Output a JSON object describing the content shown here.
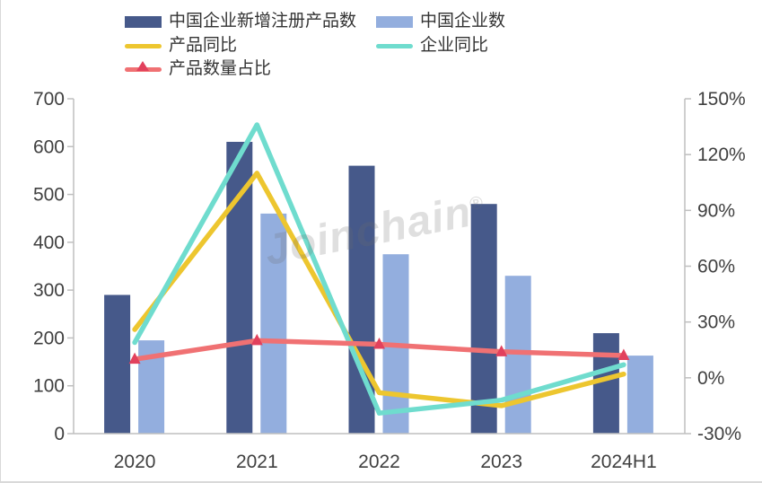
{
  "chart_data": {
    "type": "combo-bar-line",
    "categories": [
      "2020",
      "2021",
      "2022",
      "2023",
      "2024H1"
    ],
    "series": [
      {
        "name": "中国企业新增注册产品数",
        "type": "bar",
        "axis": "left",
        "color": "#46598A",
        "values": [
          290,
          610,
          560,
          480,
          210
        ]
      },
      {
        "name": "中国企业数",
        "type": "bar",
        "axis": "left",
        "color": "#93AEDE",
        "values": [
          195,
          460,
          375,
          330,
          163
        ]
      },
      {
        "name": "产品同比",
        "type": "line",
        "axis": "right",
        "color": "#EDC62F",
        "values": [
          26,
          110,
          -8,
          -15,
          2
        ]
      },
      {
        "name": "企业同比",
        "type": "line",
        "axis": "right",
        "color": "#6FDCCE",
        "values": [
          19,
          136,
          -19,
          -12,
          7
        ]
      },
      {
        "name": "产品数量占比",
        "type": "line",
        "axis": "right",
        "color": "#F07173",
        "marker": "triangle",
        "marker_color": "#E2415D",
        "values": [
          10,
          20,
          18,
          14,
          12
        ]
      }
    ],
    "left_axis": {
      "min": 0,
      "max": 700,
      "step": 100,
      "ticks": [
        "0",
        "100",
        "200",
        "300",
        "400",
        "500",
        "600",
        "700"
      ]
    },
    "right_axis": {
      "min": -30,
      "max": 150,
      "step": 30,
      "ticks": [
        "-30%",
        "0%",
        "30%",
        "60%",
        "90%",
        "120%",
        "150%"
      ]
    },
    "grid": false,
    "legend_position": "top",
    "axis_color": "#BFBFBF",
    "tick_text_color": "#404040",
    "watermark": "Joinchain",
    "watermark_mark": "®"
  }
}
